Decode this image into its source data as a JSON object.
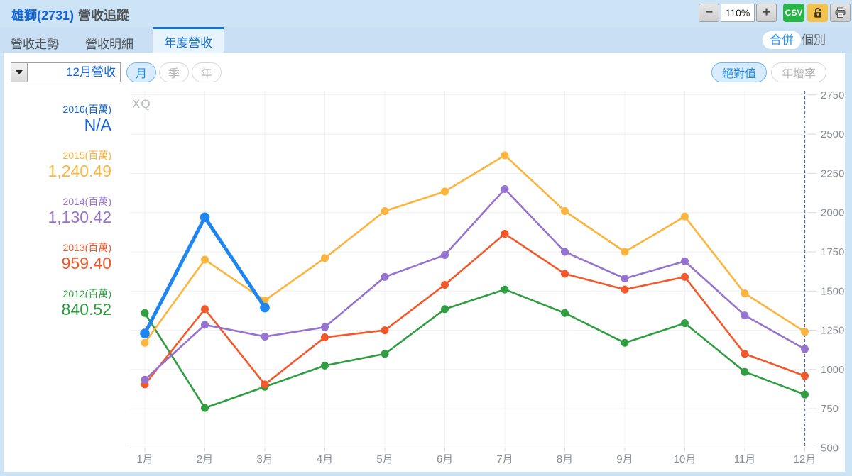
{
  "header": {
    "stock": "雄獅(2731)",
    "title_suffix": "營收追蹤"
  },
  "toolbar": {
    "zoom_out_label": "−",
    "zoom_level": "110%",
    "zoom_in_label": "+",
    "csv_label": "CSV"
  },
  "tabs": [
    {
      "label": "營收走勢",
      "active": false
    },
    {
      "label": "營收明細",
      "active": false
    },
    {
      "label": "年度營收",
      "active": true
    }
  ],
  "scope_toggle": [
    {
      "label": "合併",
      "active": true
    },
    {
      "label": "個別",
      "active": false
    }
  ],
  "controls": {
    "month_select_value": "12月營收",
    "period_buttons": [
      {
        "label": "月",
        "active": true
      },
      {
        "label": "季",
        "active": false
      },
      {
        "label": "年",
        "active": false
      }
    ],
    "mode_buttons": [
      {
        "label": "絕對值",
        "active": true
      },
      {
        "label": "年增率",
        "active": false
      }
    ]
  },
  "watermark": "XQ",
  "legend": {
    "entries": [
      {
        "label": "2016(百萬)",
        "value": "N/A",
        "color": "#1565dd"
      },
      {
        "label": "2015(百萬)",
        "value": "1,240.49",
        "color": "#fcb43d"
      },
      {
        "label": "2014(百萬)",
        "value": "1,130.42",
        "color": "#9673d0"
      },
      {
        "label": "2013(百萬)",
        "value": "959.40",
        "color": "#f4582a"
      },
      {
        "label": "2012(百萬)",
        "value": "840.52",
        "color": "#2f9e41"
      }
    ]
  },
  "chart_data": {
    "type": "line",
    "title": "",
    "x_categories": [
      "1月",
      "2月",
      "3月",
      "4月",
      "5月",
      "6月",
      "7月",
      "8月",
      "9月",
      "10月",
      "11月",
      "12月"
    ],
    "y_axis": {
      "min": 500,
      "max": 2750,
      "step": 250,
      "position": "right",
      "ticks": [
        500,
        750,
        1000,
        1250,
        1500,
        1750,
        2000,
        2250,
        2500,
        2750
      ]
    },
    "grid": true,
    "selected_month_index": 11,
    "series": [
      {
        "name": "2016",
        "unit": "百萬",
        "color": "#1e86f0",
        "emphasis": true,
        "values": [
          1230,
          1970,
          1395,
          null,
          null,
          null,
          null,
          null,
          null,
          null,
          null,
          null
        ]
      },
      {
        "name": "2015",
        "unit": "百萬",
        "color": "#fcb43d",
        "emphasis": false,
        "values": [
          1170,
          1700,
          1440,
          1710,
          2010,
          2135,
          2365,
          2010,
          1750,
          1975,
          1485,
          1240.49
        ]
      },
      {
        "name": "2014",
        "unit": "百萬",
        "color": "#9673d0",
        "emphasis": false,
        "values": [
          935,
          1285,
          1210,
          1270,
          1590,
          1730,
          2150,
          1750,
          1580,
          1690,
          1345,
          1130.42
        ]
      },
      {
        "name": "2013",
        "unit": "百萬",
        "color": "#f4582a",
        "emphasis": false,
        "values": [
          905,
          1385,
          905,
          1205,
          1250,
          1540,
          1865,
          1610,
          1510,
          1590,
          1100,
          959.4
        ]
      },
      {
        "name": "2012",
        "unit": "百萬",
        "color": "#2f9e41",
        "emphasis": false,
        "values": [
          1360,
          755,
          890,
          1025,
          1100,
          1385,
          1510,
          1360,
          1170,
          1295,
          985,
          840.52
        ]
      }
    ]
  }
}
